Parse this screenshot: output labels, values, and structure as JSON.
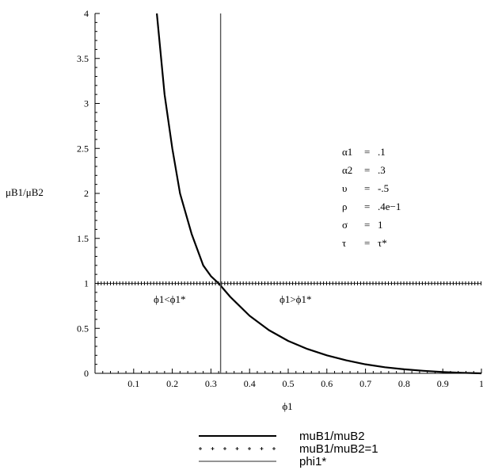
{
  "chart_data": {
    "type": "line",
    "title": "",
    "xlabel": "ϕ1",
    "ylabel": "μB1/μB2",
    "xlim": [
      0,
      1
    ],
    "ylim": [
      0,
      4
    ],
    "x_ticks": [
      0.1,
      0.2,
      0.3,
      0.4,
      0.5,
      0.6,
      0.7,
      0.8,
      0.9,
      1
    ],
    "x_tick_labels": [
      "0.1",
      "0.2",
      "0.3",
      "0.4",
      "0.5",
      "0.6",
      "0.7",
      "0.8",
      "0.9",
      "1"
    ],
    "y_ticks": [
      0,
      0.5,
      1,
      1.5,
      2,
      2.5,
      3,
      3.5,
      4
    ],
    "y_tick_labels": [
      "0",
      "0.5",
      "1",
      "1.5",
      "2",
      "2.5",
      "3",
      "3.5",
      "4"
    ],
    "grid": false,
    "legend_position": "bottom",
    "series": [
      {
        "name": "muB1/muB2",
        "style": "solid",
        "color": "#000000",
        "x": [
          0.16,
          0.18,
          0.2,
          0.22,
          0.25,
          0.28,
          0.3,
          0.32,
          0.35,
          0.4,
          0.45,
          0.5,
          0.55,
          0.6,
          0.65,
          0.7,
          0.75,
          0.8,
          0.85,
          0.9,
          0.95,
          1.0
        ],
        "y": [
          4.0,
          3.1,
          2.5,
          2.0,
          1.55,
          1.2,
          1.08,
          1.0,
          0.85,
          0.64,
          0.48,
          0.36,
          0.27,
          0.2,
          0.145,
          0.1,
          0.068,
          0.045,
          0.028,
          0.015,
          0.006,
          0.0
        ]
      },
      {
        "name": "muB1/muB2=1",
        "style": "cross-markers",
        "color": "#000000",
        "x": [
          0,
          1
        ],
        "y": [
          1,
          1
        ]
      },
      {
        "name": "phi1*",
        "style": "solid-thin",
        "color": "#555555",
        "x": [
          0.325,
          0.325
        ],
        "y": [
          0,
          4
        ]
      }
    ],
    "parameters": [
      {
        "name": "α1",
        "eq": "=",
        "value": ".1"
      },
      {
        "name": "α2",
        "eq": "=",
        "value": ".3"
      },
      {
        "name": "υ",
        "eq": "=",
        "value": "-.5"
      },
      {
        "name": "ρ",
        "eq": "=",
        "value": ".4e−1"
      },
      {
        "name": "σ",
        "eq": "=",
        "value": "1"
      },
      {
        "name": "τ",
        "eq": "=",
        "value": "τ*"
      }
    ],
    "annotations": [
      {
        "text": "ϕ1<ϕ1*",
        "region": "left"
      },
      {
        "text": "ϕ1>ϕ1*",
        "region": "right"
      }
    ],
    "legend": [
      {
        "label": "muB1/muB2",
        "style": "solid"
      },
      {
        "label": "muB1/muB2=1",
        "style": "cross-markers"
      },
      {
        "label": "phi1*",
        "style": "solid-thin"
      }
    ]
  }
}
